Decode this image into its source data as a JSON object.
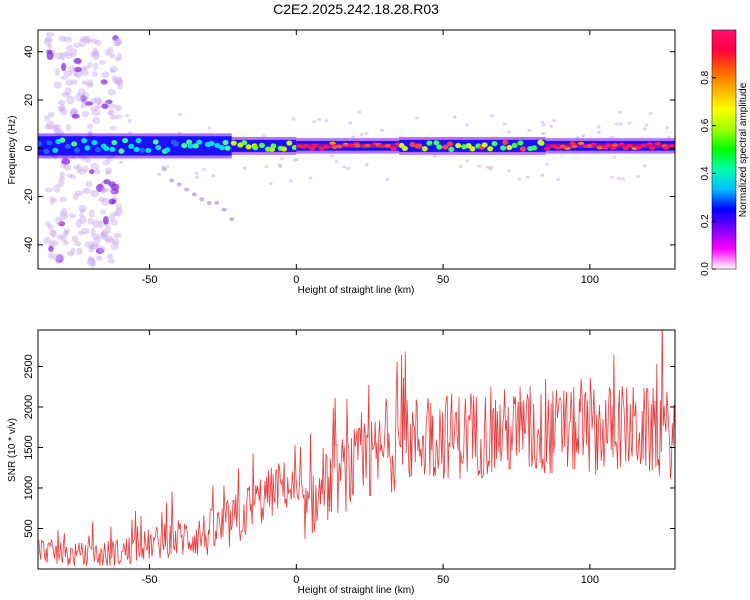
{
  "title": "C2E2.2025.242.18.28.R03",
  "chart_data": [
    {
      "type": "heatmap",
      "name": "spectrogram",
      "xlabel": "Height of straight line (km)",
      "ylabel": "Frequency (Hz)",
      "xlim": [
        -88,
        129
      ],
      "ylim": [
        -50,
        49
      ],
      "xticks": [
        -50,
        0,
        50,
        100
      ],
      "yticks": [
        -40,
        -20,
        0,
        20,
        40
      ],
      "colorbar": {
        "label": "Normalized spectral amplitude",
        "range": [
          0.0,
          1.0
        ],
        "ticks": [
          "0.0",
          "0.2",
          "0.4",
          "0.6",
          "0.8"
        ],
        "colors": [
          "#ffffff",
          "#ff00ff",
          "#7f00ff",
          "#0000ff",
          "#00c0ff",
          "#00ffb0",
          "#00ff00",
          "#a0ff00",
          "#ffff00",
          "#ffb000",
          "#ff6000",
          "#ff0040",
          "#ff1070"
        ]
      },
      "ridge_center_hz": 1,
      "ridge_segments": [
        {
          "x": [
            -88,
            -22
          ],
          "halfwidth_hz": 4,
          "level": "cyan-green"
        },
        {
          "x": [
            -22,
            0
          ],
          "halfwidth_hz": 2.5,
          "level": "yellow-green"
        },
        {
          "x": [
            0,
            35
          ],
          "halfwidth_hz": 2,
          "level": "red-orange"
        },
        {
          "x": [
            35,
            85
          ],
          "halfwidth_hz": 2.5,
          "level": "green-yellow"
        },
        {
          "x": [
            85,
            129
          ],
          "halfwidth_hz": 2,
          "level": "red"
        }
      ],
      "scatter_region": {
        "x": [
          -85,
          -60
        ],
        "y": [
          -48,
          48
        ],
        "level": "faint-violet"
      },
      "secondary_trace": {
        "x": [
          -45,
          -22
        ],
        "y": [
          -10,
          -28
        ]
      }
    },
    {
      "type": "line",
      "name": "snr",
      "xlabel": "Height of straight line (km)",
      "ylabel": "SNR (10 * v/v)",
      "xlim": [
        -88,
        129
      ],
      "ylim": [
        0,
        2950
      ],
      "xticks": [
        -50,
        0,
        50,
        100
      ],
      "yticks": [
        500,
        1000,
        1500,
        2000,
        2500
      ],
      "color": "#e83a3a",
      "trend": {
        "x": [
          -88,
          -80,
          -70,
          -60,
          -50,
          -40,
          -30,
          -25,
          -20,
          -15,
          -10,
          -5,
          -2,
          0,
          3,
          6,
          10,
          15,
          20,
          25,
          30,
          40,
          50,
          60,
          70,
          80,
          90,
          100,
          110,
          120,
          129
        ],
        "y": [
          250,
          180,
          150,
          200,
          300,
          380,
          430,
          500,
          600,
          780,
          900,
          1050,
          1000,
          900,
          700,
          800,
          1000,
          1150,
          1250,
          1300,
          1450,
          1600,
          1650,
          1650,
          1700,
          1650,
          1700,
          1700,
          1750,
          1700,
          1650
        ]
      },
      "spread": {
        "x": [
          -88,
          -50,
          -20,
          0,
          10,
          30,
          129
        ],
        "y": [
          150,
          200,
          350,
          300,
          450,
          550,
          550
        ]
      },
      "samples": 700
    }
  ]
}
